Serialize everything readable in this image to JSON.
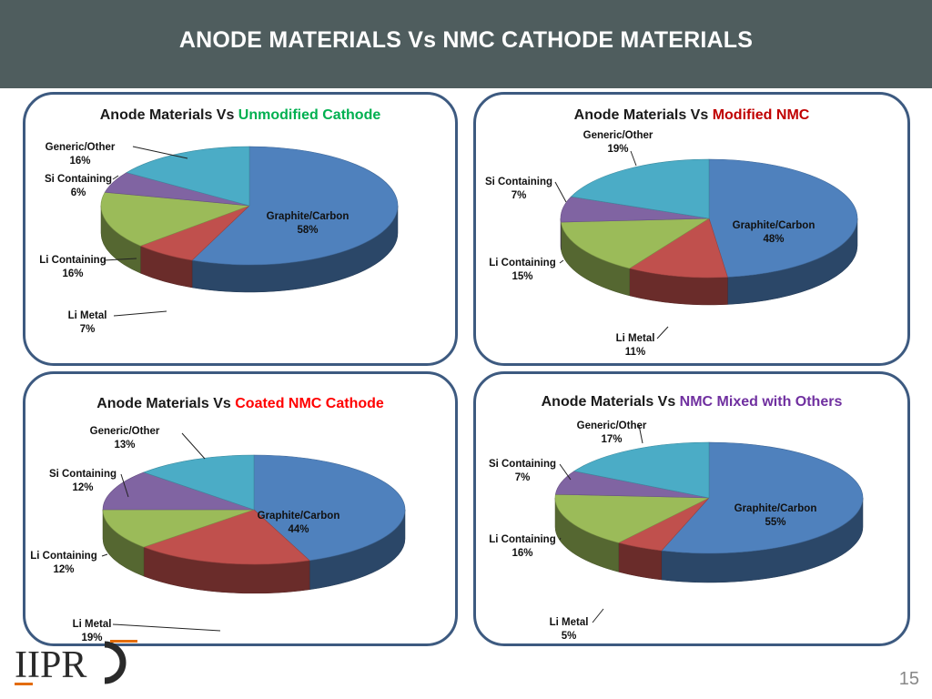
{
  "header": {
    "title": "ANODE MATERIALS Vs NMC CATHODE MATERIALS"
  },
  "logo": {
    "text": "IIPRD"
  },
  "page_number": "15",
  "colors": {
    "graphite": "#4f81bd",
    "li_metal": "#c0504d",
    "li_containing": "#9bbb59",
    "si_containing": "#8064a2",
    "generic": "#4bacc6",
    "unmodified": "#00b050",
    "modified": "#c00000",
    "coated": "#ff0000",
    "mixed": "#7030a0",
    "panel_border": "#3d5a80"
  },
  "chart_data": [
    {
      "type": "pie",
      "title_prefix": "Anode Materials Vs ",
      "title_highlight": "Unmodified Cathode",
      "highlight_color": "#00b050",
      "categories": [
        "Graphite/Carbon",
        "Li Metal",
        "Li Containing",
        "Si Containing",
        "Generic/Other"
      ],
      "values": [
        58,
        7,
        16,
        6,
        16
      ],
      "labels": [
        "58%",
        "7%",
        "16%",
        "6%",
        "16%"
      ]
    },
    {
      "type": "pie",
      "title_prefix": "Anode Materials Vs ",
      "title_highlight": "Modified NMC",
      "highlight_color": "#c00000",
      "categories": [
        "Graphite/Carbon",
        "Li Metal",
        "Li Containing",
        "Si Containing",
        "Generic/Other"
      ],
      "values": [
        48,
        11,
        15,
        7,
        19
      ],
      "labels": [
        "48%",
        "11%",
        "15%",
        "7%",
        "19%"
      ]
    },
    {
      "type": "pie",
      "title_prefix": "Anode Materials Vs ",
      "title_highlight": "Coated NMC Cathode",
      "highlight_color": "#ff0000",
      "categories": [
        "Graphite/Carbon",
        "Li Metal",
        "Li Containing",
        "Si Containing",
        "Generic/Other"
      ],
      "values": [
        44,
        19,
        12,
        12,
        13
      ],
      "labels": [
        "44%",
        "19%",
        "12%",
        "12%",
        "13%"
      ]
    },
    {
      "type": "pie",
      "title_prefix": "Anode Materials Vs ",
      "title_highlight": "NMC Mixed with Others",
      "highlight_color": "#7030a0",
      "categories": [
        "Graphite/Carbon",
        "Li Metal",
        "Li Containing",
        "Si Containing",
        "Generic/Other"
      ],
      "values": [
        55,
        5,
        16,
        7,
        17
      ],
      "labels": [
        "55%",
        "5%",
        "16%",
        "7%",
        "17%"
      ]
    }
  ]
}
